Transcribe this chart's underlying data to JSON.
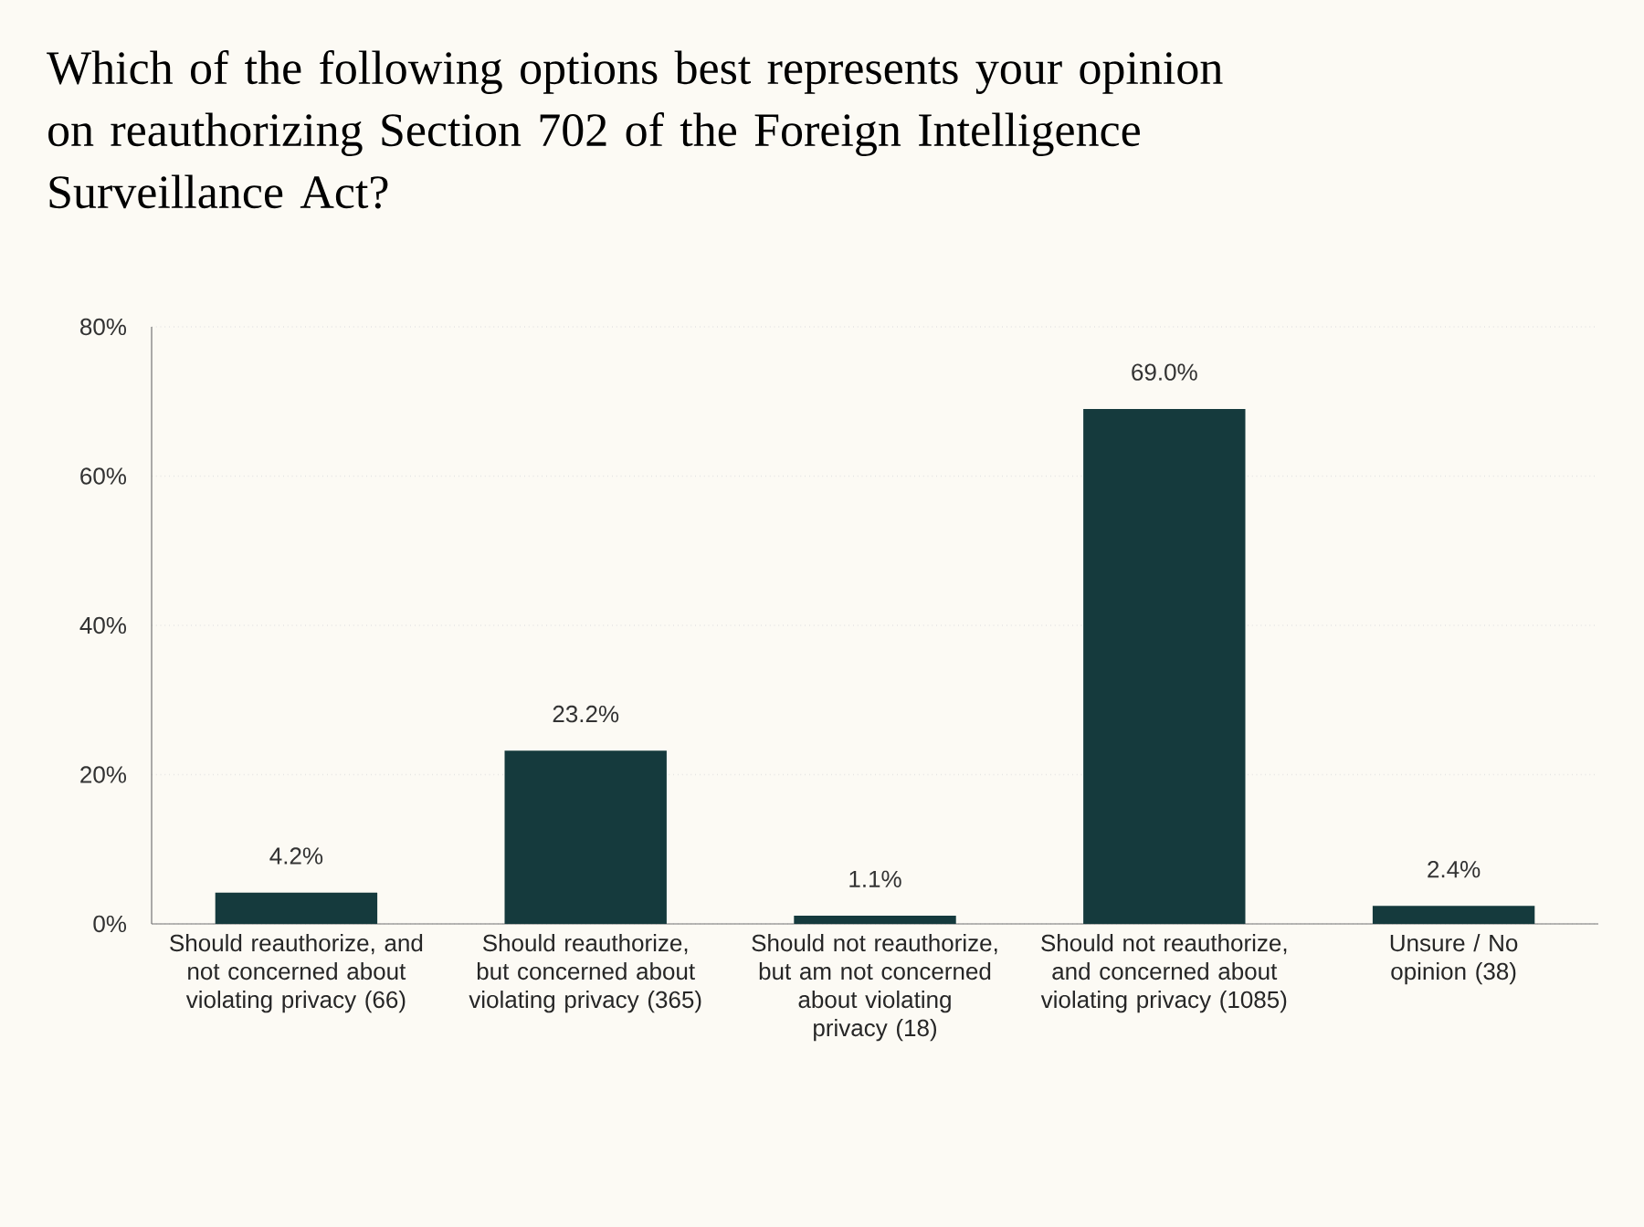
{
  "chart_data": {
    "type": "bar",
    "title": "Which of the following options best represents your opinion on reauthorizing Section 702 of the Foreign Intelligence Surveillance Act?",
    "categories": [
      "Should reauthorize, and not concerned about violating privacy (66)",
      "Should reauthorize, but concerned about violating privacy (365)",
      "Should not reauthorize, but am not concerned about violating privacy (18)",
      "Should not reauthorize, and concerned about violating privacy (1085)",
      "Unsure / No opinion (38)"
    ],
    "values": [
      4.2,
      23.2,
      1.1,
      69.0,
      2.4
    ],
    "value_labels": [
      "4.2%",
      "23.2%",
      "1.1%",
      "69.0%",
      "2.4%"
    ],
    "color": "#153a3d",
    "ylim": [
      0,
      80
    ],
    "yticks": [
      {
        "value": 0,
        "label": "0%"
      },
      {
        "value": 20,
        "label": "20%"
      },
      {
        "value": 40,
        "label": "40%"
      },
      {
        "value": 60,
        "label": "60%"
      },
      {
        "value": 80,
        "label": "80%"
      }
    ],
    "grid": "y"
  }
}
